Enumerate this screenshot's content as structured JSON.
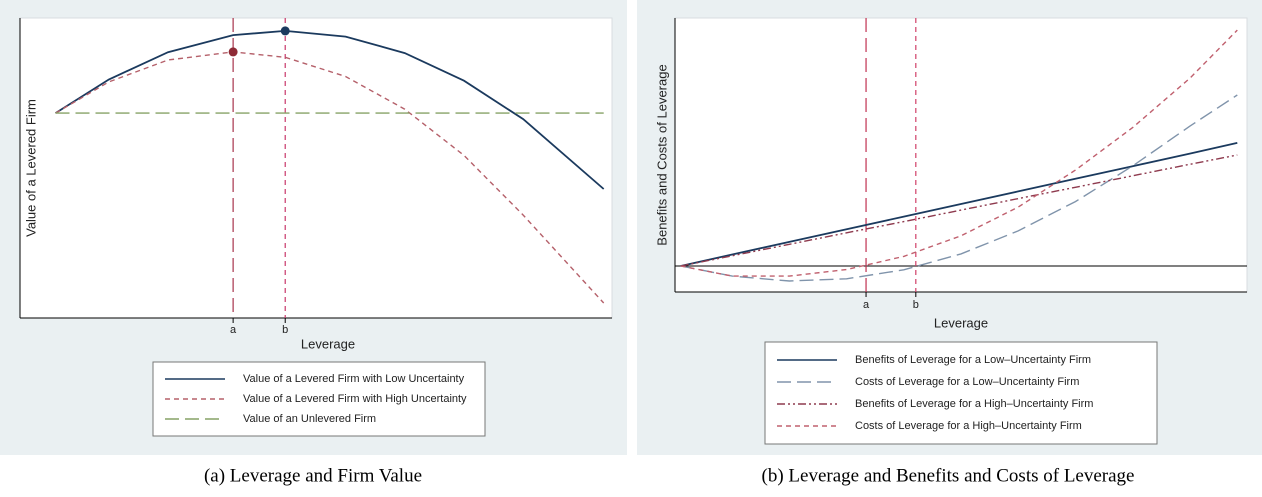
{
  "chart_data": [
    {
      "type": "line",
      "caption": "(a) Leverage and Firm Value",
      "xlabel": "Leverage",
      "ylabel": "Value of a Levered Firm",
      "xlim": [
        0,
        100
      ],
      "ylim": [
        0,
        100
      ],
      "x": [
        6,
        15,
        25,
        36,
        44.8,
        55,
        65,
        75,
        85,
        98.6
      ],
      "series": [
        {
          "name": "Value of a Levered Firm with Low Uncertainty",
          "color": "#1b3a5e",
          "dash": "solid",
          "values": [
            68.3,
            79.5,
            88.6,
            94.3,
            95.7,
            93.8,
            88.3,
            79.1,
            66.3,
            43
          ]
        },
        {
          "name": "Value of a Levered Firm with High Uncertainty",
          "color": "#b5606a",
          "dash": "short",
          "values": [
            68.3,
            78.7,
            86,
            88.7,
            86.9,
            80.5,
            69.6,
            54.2,
            34.3,
            5
          ]
        },
        {
          "name": "Value of an Unlevered Firm",
          "color": "#86a266",
          "dash": "long",
          "values": [
            68.3,
            68.3,
            68.3,
            68.3,
            68.3,
            68.3,
            68.3,
            68.3,
            68.3,
            68.3
          ]
        }
      ],
      "vlines": [
        {
          "x": 36,
          "label": "a",
          "color": "#a8344c",
          "dash": "long"
        },
        {
          "x": 44.8,
          "label": "b",
          "color": "#c8386a",
          "dash": "short"
        }
      ],
      "markers": [
        {
          "x": 36,
          "y": 88.7,
          "color": "#8e2a36"
        },
        {
          "x": 44.8,
          "y": 95.7,
          "color": "#1b3a5e"
        }
      ]
    },
    {
      "type": "line",
      "caption": "(b) Leverage and Benefits and Costs of Leverage",
      "xlabel": "Leverage",
      "ylabel": "Benefits and Costs of Leverage",
      "xlim": [
        0,
        100
      ],
      "ylim": [
        0,
        100
      ],
      "hline": 9.5,
      "x": [
        1,
        10,
        20,
        30,
        40,
        50,
        60,
        70,
        80,
        90,
        98.3
      ],
      "series": [
        {
          "name": "Benefits of Leverage for a Low–Uncertainty Firm",
          "color": "#1b3a5e",
          "dash": "solid",
          "values": [
            9.5,
            13.7,
            18.3,
            22.9,
            27.5,
            32.1,
            36.7,
            41.3,
            45.9,
            50.5,
            54.4
          ]
        },
        {
          "name": "Costs of Leverage for a Low–Uncertainty Firm",
          "color": "#8094ab",
          "dash": "long",
          "values": [
            9.5,
            5.8,
            4.0,
            4.8,
            8.1,
            13.9,
            22.3,
            33.0,
            46,
            60.5,
            71.9
          ]
        },
        {
          "name": "Benefits of Leverage for a High–Uncertainty Firm",
          "color": "#8e3a4e",
          "dash": "dashdot",
          "values": [
            9.5,
            13.2,
            17.4,
            21.6,
            25.7,
            29.9,
            34.1,
            38.2,
            42.4,
            46.6,
            50.0
          ]
        },
        {
          "name": "Costs of Leverage for a High–Uncertainty Firm",
          "color": "#c0606e",
          "dash": "short",
          "values": [
            9.5,
            5.8,
            5.8,
            8.2,
            13,
            20.5,
            31,
            44.5,
            60,
            78,
            95.6
          ]
        }
      ],
      "vlines": [
        {
          "x": 33.4,
          "label": "a",
          "color": "#c03050",
          "dash": "long"
        },
        {
          "x": 42.1,
          "label": "b",
          "color": "#d04068",
          "dash": "short"
        }
      ]
    }
  ]
}
